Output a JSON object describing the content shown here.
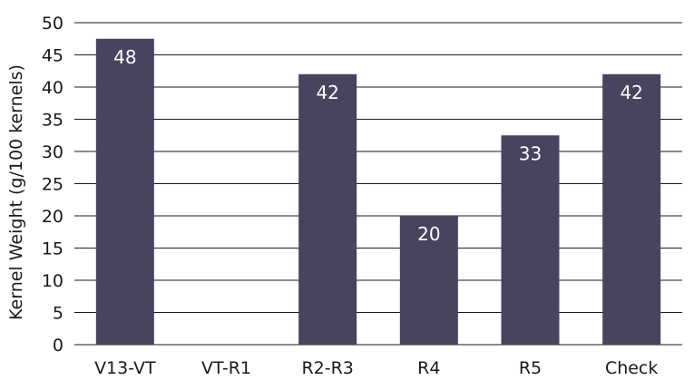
{
  "chart_data": {
    "type": "bar",
    "categories": [
      "V13-VT",
      "VT-R1",
      "R2-R3",
      "R4",
      "R5",
      "Check"
    ],
    "values": [
      47.5,
      null,
      42,
      20,
      32.5,
      42
    ],
    "data_labels": [
      "48",
      "",
      "42",
      "20",
      "33",
      "42"
    ],
    "title": "",
    "xlabel": "",
    "ylabel": "Kernel Weight (g/100 kernels)",
    "ylim": [
      0,
      50
    ],
    "yticks": [
      0,
      5,
      10,
      15,
      20,
      25,
      30,
      35,
      40,
      45,
      50
    ],
    "grid": true,
    "bar_color": "#48445f"
  }
}
